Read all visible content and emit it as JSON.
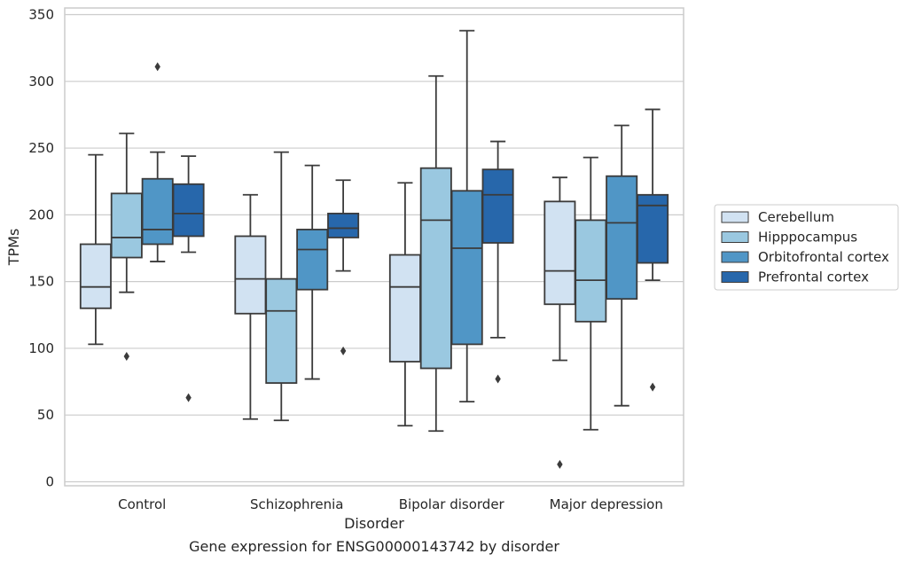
{
  "caption": "Gene expression for ENSG00000143742 by disorder",
  "chart_data": {
    "type": "box",
    "xlabel": "Disorder",
    "ylabel": "TPMs",
    "ylim": [
      -3,
      355
    ],
    "yticks": [
      0,
      50,
      100,
      150,
      200,
      250,
      300,
      350
    ],
    "grid": "horizontal",
    "legend_position": "right",
    "categories": [
      "Control",
      "Schizophrenia",
      "Bipolar disorder",
      "Major depression"
    ],
    "series": [
      {
        "name": "Cerebellum",
        "color": "#d1e2f2",
        "boxes": [
          {
            "whislo": 103,
            "q1": 130,
            "med": 146,
            "q3": 178,
            "whishi": 245,
            "fliers": []
          },
          {
            "whislo": 47,
            "q1": 126,
            "med": 152,
            "q3": 184,
            "whishi": 215,
            "fliers": []
          },
          {
            "whislo": 42,
            "q1": 90,
            "med": 146,
            "q3": 170,
            "whishi": 224,
            "fliers": []
          },
          {
            "whislo": 91,
            "q1": 133,
            "med": 158,
            "q3": 210,
            "whishi": 228,
            "fliers": [
              13
            ]
          }
        ]
      },
      {
        "name": "Hipppocampus",
        "color": "#9ac8e0",
        "boxes": [
          {
            "whislo": 142,
            "q1": 168,
            "med": 183,
            "q3": 216,
            "whishi": 261,
            "fliers": [
              94
            ]
          },
          {
            "whislo": 46,
            "q1": 74,
            "med": 128,
            "q3": 152,
            "whishi": 247,
            "fliers": []
          },
          {
            "whislo": 38,
            "q1": 85,
            "med": 196,
            "q3": 235,
            "whishi": 304,
            "fliers": []
          },
          {
            "whislo": 39,
            "q1": 120,
            "med": 151,
            "q3": 196,
            "whishi": 243,
            "fliers": []
          }
        ]
      },
      {
        "name": "Orbitofrontal cortex",
        "color": "#5096c6",
        "boxes": [
          {
            "whislo": 165,
            "q1": 178,
            "med": 189,
            "q3": 227,
            "whishi": 247,
            "fliers": [
              311
            ]
          },
          {
            "whislo": 77,
            "q1": 144,
            "med": 174,
            "q3": 189,
            "whishi": 237,
            "fliers": []
          },
          {
            "whislo": 60,
            "q1": 103,
            "med": 175,
            "q3": 218,
            "whishi": 338,
            "fliers": []
          },
          {
            "whislo": 57,
            "q1": 137,
            "med": 194,
            "q3": 229,
            "whishi": 267,
            "fliers": []
          }
        ]
      },
      {
        "name": "Prefrontal cortex",
        "color": "#2767ab",
        "boxes": [
          {
            "whislo": 172,
            "q1": 184,
            "med": 201,
            "q3": 223,
            "whishi": 244,
            "fliers": [
              63
            ]
          },
          {
            "whislo": 158,
            "q1": 183,
            "med": 190,
            "q3": 201,
            "whishi": 226,
            "fliers": [
              98
            ]
          },
          {
            "whislo": 108,
            "q1": 179,
            "med": 215,
            "q3": 234,
            "whishi": 255,
            "fliers": [
              77
            ]
          },
          {
            "whislo": 151,
            "q1": 164,
            "med": 207,
            "q3": 215,
            "whishi": 279,
            "fliers": [
              71
            ]
          }
        ]
      }
    ]
  }
}
